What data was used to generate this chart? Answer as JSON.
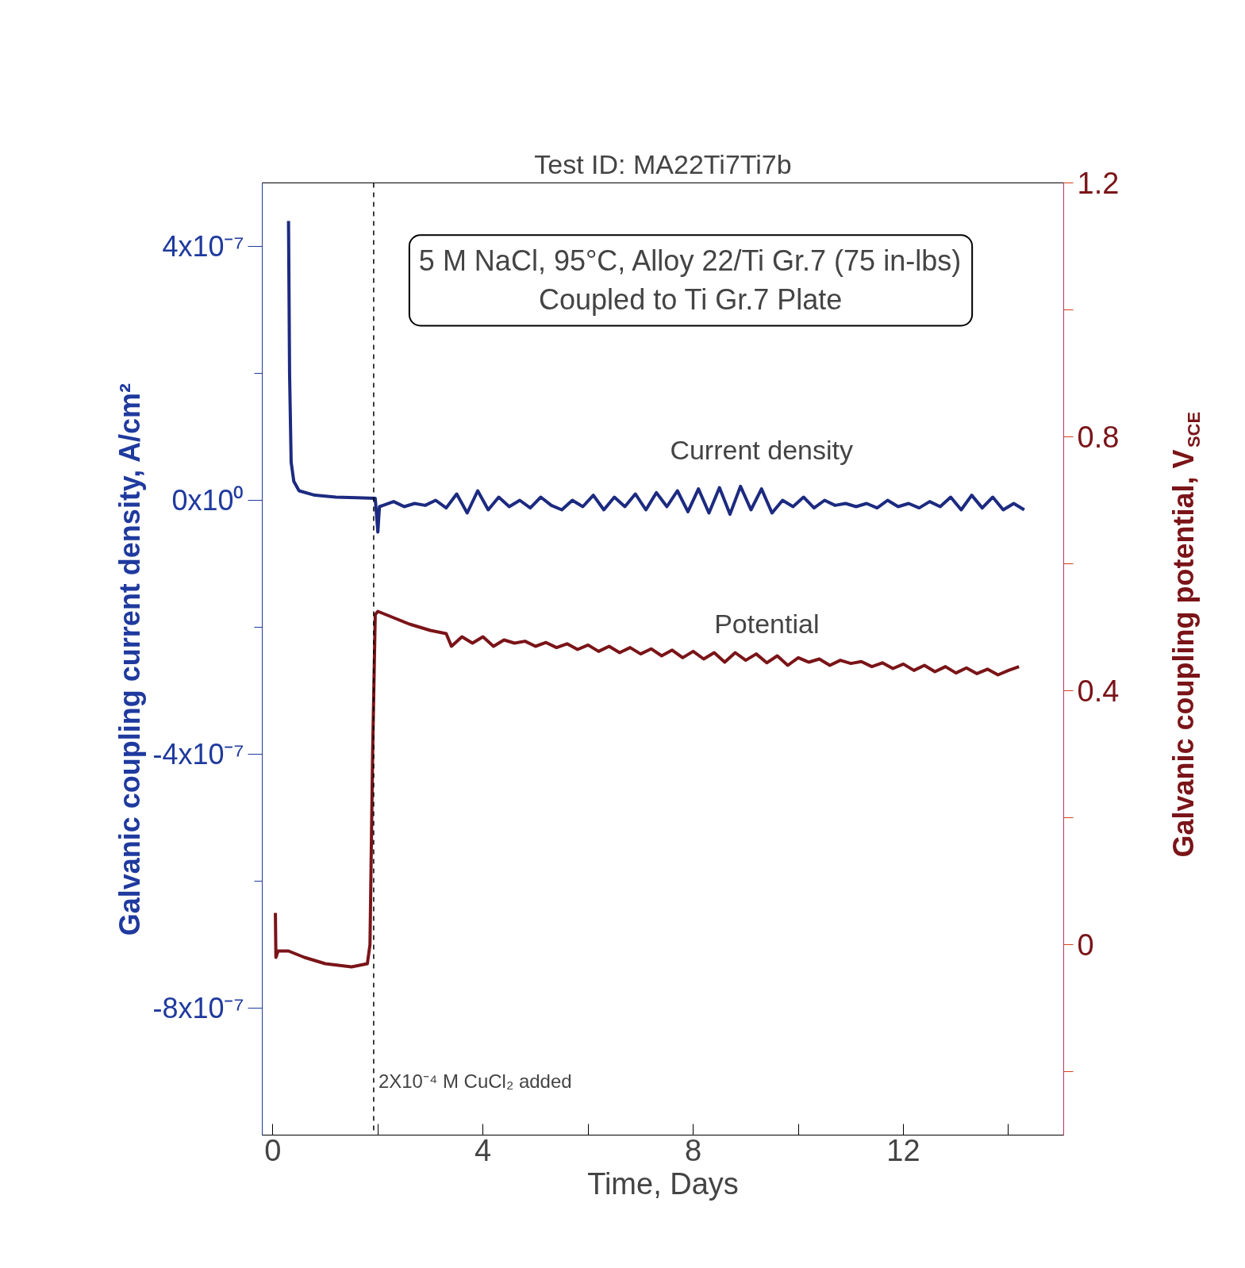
{
  "chart_data": {
    "type": "line",
    "title": "Test ID: MA22Ti7Ti7b",
    "subtitle": "5 M NaCl, 95°C, Alloy 22/Ti Gr.7 (75 in-lbs)\nCoupled to Ti Gr.7 Plate",
    "xlabel": "Time, Days",
    "ylabel": "Galvanic coupling current density, A/cm²",
    "y2label": "Galvanic coupling potential, V$_{SCE}$",
    "xlim": [
      -0.2,
      15.05
    ],
    "xticks": [
      0,
      {
        "value": 2,
        "label": null
      },
      4,
      {
        "value": 6,
        "label": null
      },
      8,
      {
        "value": 10,
        "label": null
      },
      12,
      {
        "value": 14,
        "label": null
      }
    ],
    "ylim": [
      -1e-06,
      5e-07
    ],
    "yticks": [
      {
        "value": -8e-07,
        "label": "-8x10⁻⁷"
      },
      {
        "value": -6e-07,
        "label": null
      },
      {
        "value": -4e-07,
        "label": "-4x10⁻⁷"
      },
      {
        "value": -2e-07,
        "label": null
      },
      {
        "value": 0,
        "label": "0x10⁰"
      },
      {
        "value": 2e-07,
        "label": null
      },
      {
        "value": 4e-07,
        "label": "4x10⁻⁷"
      }
    ],
    "y2lim": [
      -0.3,
      1.2
    ],
    "y2ticks": [
      {
        "value": -0.2,
        "label": null
      },
      0,
      {
        "value": 0.2,
        "label": null
      },
      0.4,
      {
        "value": 0.6,
        "label": null
      },
      0.8,
      {
        "value": 1.0,
        "label": null
      },
      1.2
    ],
    "grid": false,
    "marker": "none",
    "line_style": "solid",
    "ref_lines": [
      {
        "axis": "x",
        "value": 1.92,
        "label": "2X10⁻⁴ M CuCl₂ added",
        "color": "#000000",
        "line_style": "dashed"
      }
    ],
    "series": [
      {
        "name": "Current density",
        "color": "#1c2a80",
        "x": [
          0.3,
          0.32,
          0.35,
          0.4,
          0.5,
          0.8,
          1.2,
          1.6,
          1.95,
          2.0,
          2.03,
          2.1,
          2.3,
          2.5,
          2.7,
          2.9,
          3.1,
          3.3,
          3.5,
          3.7,
          3.9,
          4.1,
          4.3,
          4.5,
          4.7,
          4.9,
          5.1,
          5.3,
          5.5,
          5.7,
          5.9,
          6.1,
          6.3,
          6.5,
          6.7,
          6.9,
          7.1,
          7.3,
          7.5,
          7.7,
          7.9,
          8.1,
          8.3,
          8.5,
          8.7,
          8.9,
          9.1,
          9.3,
          9.5,
          9.7,
          9.9,
          10.1,
          10.3,
          10.5,
          10.7,
          10.9,
          11.1,
          11.3,
          11.5,
          11.7,
          11.9,
          12.1,
          12.3,
          12.5,
          12.7,
          12.9,
          13.1,
          13.3,
          13.5,
          13.7,
          13.9,
          14.1,
          14.3
        ],
        "values": [
          4.4e-07,
          2e-07,
          6e-08,
          3e-08,
          1.5e-08,
          8e-09,
          5e-09,
          4e-09,
          3e-09,
          -5e-08,
          -1e-08,
          -8e-09,
          -2e-09,
          -1e-08,
          -5e-09,
          -8e-09,
          0,
          -1.2e-08,
          1e-08,
          -2e-08,
          1.5e-08,
          -1.5e-08,
          5e-09,
          -1e-08,
          0,
          -1.2e-08,
          5e-09,
          -8e-09,
          -1.5e-08,
          0,
          -1e-08,
          8e-09,
          -1.5e-08,
          5e-09,
          -1e-08,
          1e-08,
          -1.5e-08,
          1.2e-08,
          -1e-08,
          1.5e-08,
          -1.8e-08,
          1.8e-08,
          -2e-08,
          2e-08,
          -2.2e-08,
          2.2e-08,
          -1.5e-08,
          1.8e-08,
          -2e-08,
          0,
          -1e-08,
          5e-09,
          -1.2e-08,
          0,
          -8e-09,
          -5e-09,
          -1e-08,
          -5e-09,
          -1.2e-08,
          0,
          -1e-08,
          -5e-09,
          -1.2e-08,
          -2e-09,
          -1e-08,
          5e-09,
          -1.5e-08,
          8e-09,
          -1.2e-08,
          5e-09,
          -1.5e-08,
          -5e-09,
          -1.5e-08
        ]
      },
      {
        "name": "Potential",
        "color": "#7a1418",
        "axis": "y2",
        "x": [
          0.05,
          0.06,
          0.1,
          0.3,
          0.6,
          1.0,
          1.5,
          1.8,
          1.85,
          1.9,
          1.95,
          2.0,
          2.3,
          2.6,
          3.0,
          3.3,
          3.4,
          3.6,
          3.8,
          4.0,
          4.2,
          4.4,
          4.6,
          4.8,
          5.0,
          5.2,
          5.4,
          5.6,
          5.8,
          6.0,
          6.2,
          6.4,
          6.6,
          6.8,
          7.0,
          7.2,
          7.4,
          7.6,
          7.8,
          8.0,
          8.2,
          8.4,
          8.6,
          8.8,
          9.0,
          9.2,
          9.4,
          9.6,
          9.8,
          10.0,
          10.2,
          10.4,
          10.6,
          10.8,
          11.0,
          11.2,
          11.4,
          11.6,
          11.8,
          12.0,
          12.2,
          12.4,
          12.6,
          12.8,
          13.0,
          13.2,
          13.4,
          13.6,
          13.8,
          14.0,
          14.2
        ],
        "values": [
          0.05,
          -0.02,
          -0.01,
          -0.01,
          -0.02,
          -0.03,
          -0.035,
          -0.03,
          0.0,
          0.3,
          0.52,
          0.525,
          0.515,
          0.505,
          0.495,
          0.49,
          0.47,
          0.485,
          0.475,
          0.485,
          0.47,
          0.48,
          0.475,
          0.478,
          0.47,
          0.476,
          0.468,
          0.474,
          0.465,
          0.472,
          0.462,
          0.47,
          0.46,
          0.468,
          0.458,
          0.466,
          0.455,
          0.464,
          0.452,
          0.462,
          0.45,
          0.46,
          0.445,
          0.46,
          0.448,
          0.458,
          0.444,
          0.455,
          0.44,
          0.452,
          0.445,
          0.45,
          0.44,
          0.448,
          0.443,
          0.446,
          0.438,
          0.444,
          0.435,
          0.442,
          0.432,
          0.44,
          0.43,
          0.438,
          0.428,
          0.436,
          0.427,
          0.434,
          0.425,
          0.432,
          0.438
        ]
      }
    ]
  }
}
